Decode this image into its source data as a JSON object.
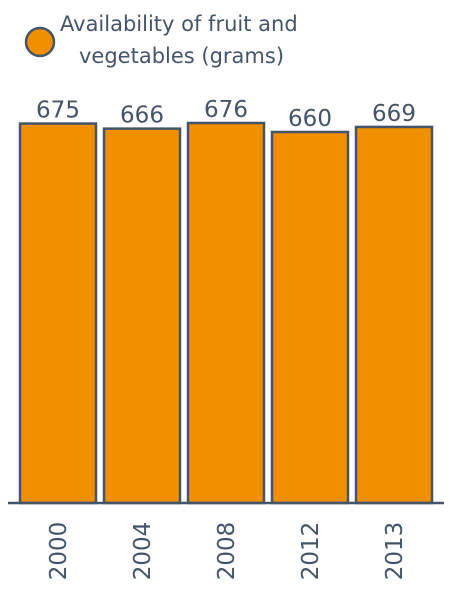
{
  "legend": {
    "label_line1": "Availability of fruit and",
    "label_line2": "vegetables (grams)"
  },
  "colors": {
    "bar_fill": "#f09000",
    "bar_stroke": "#44546a",
    "axis": "#44546a",
    "text": "#44546a"
  },
  "chart_data": {
    "type": "bar",
    "categories": [
      "2000",
      "2004",
      "2008",
      "2012",
      "2013"
    ],
    "series": [
      {
        "name": "Availability of fruit and vegetables (grams)",
        "values": [
          675,
          666,
          676,
          660,
          669
        ]
      }
    ],
    "data_labels": [
      "675",
      "666",
      "676",
      "660",
      "669"
    ],
    "ylim": [
      0,
      676
    ],
    "grid": false,
    "legend_position": "top-left"
  }
}
